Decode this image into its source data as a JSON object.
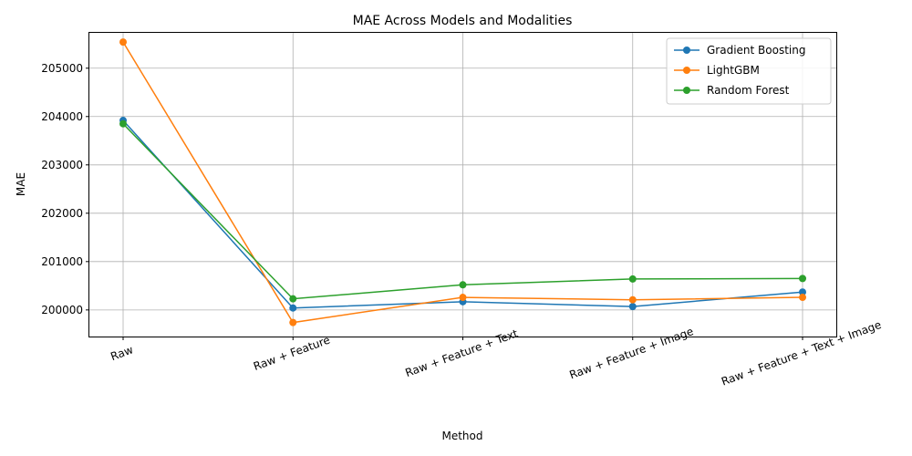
{
  "chart_data": {
    "type": "line",
    "title": "MAE Across Models and Modalities",
    "xlabel": "Method",
    "ylabel": "MAE",
    "categories": [
      "Raw",
      "Raw + Feature",
      "Raw + Feature + Text",
      "Raw + Feature + Image",
      "Raw + Feature + Text + Image"
    ],
    "yticks": [
      200000,
      201000,
      202000,
      203000,
      204000,
      205000
    ],
    "ylim": [
      199450,
      205750
    ],
    "grid": true,
    "legend_position": "top-right",
    "series": [
      {
        "name": "Gradient Boosting",
        "color": "#1f77b4",
        "values": [
          203920,
          200040,
          200170,
          200070,
          200370
        ]
      },
      {
        "name": "LightGBM",
        "color": "#ff7f0e",
        "values": [
          205540,
          199740,
          200260,
          200210,
          200260
        ]
      },
      {
        "name": "Random Forest",
        "color": "#2ca02c",
        "values": [
          203850,
          200230,
          200520,
          200640,
          200650
        ]
      }
    ]
  }
}
